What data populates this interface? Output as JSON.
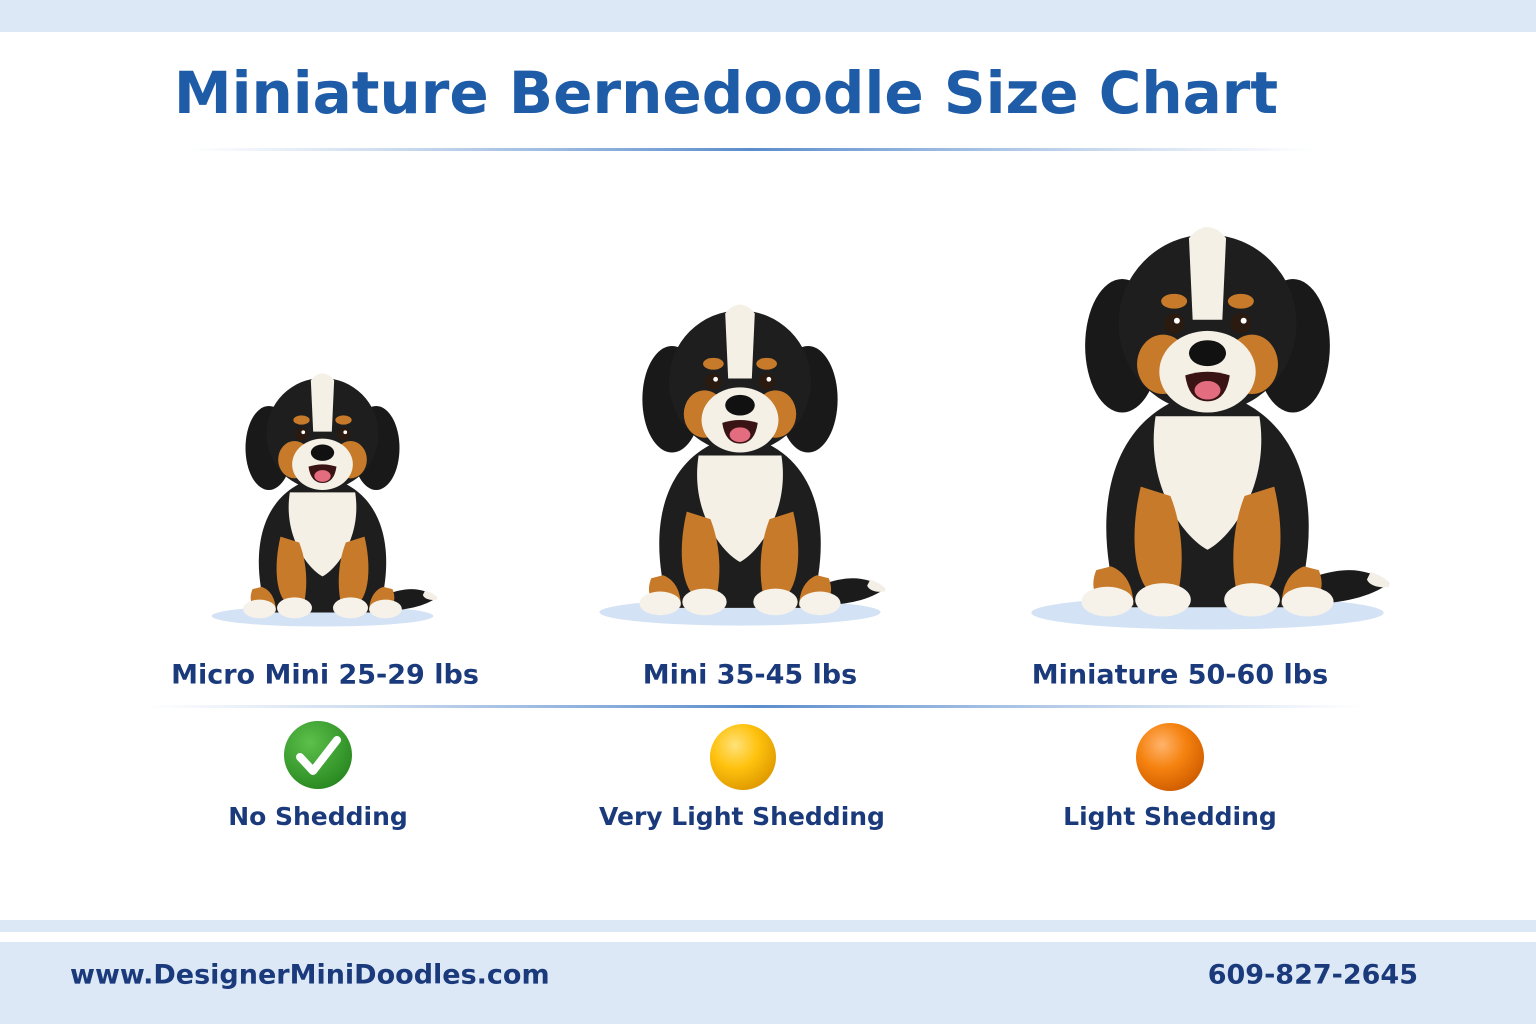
{
  "title": "Miniature Bernedoodle Size Chart",
  "sizes": [
    {
      "label": "Micro Mini 25-29 lbs",
      "shedding": "No Shedding"
    },
    {
      "label": "Mini 35-45 lbs",
      "shedding": "Very Light Shedding"
    },
    {
      "label": "Miniature 50-60 lbs",
      "shedding": "Light Shedding"
    }
  ],
  "footer": {
    "website": "www.DesignerMiniDoodles.com",
    "phone": "609-827-2645"
  }
}
